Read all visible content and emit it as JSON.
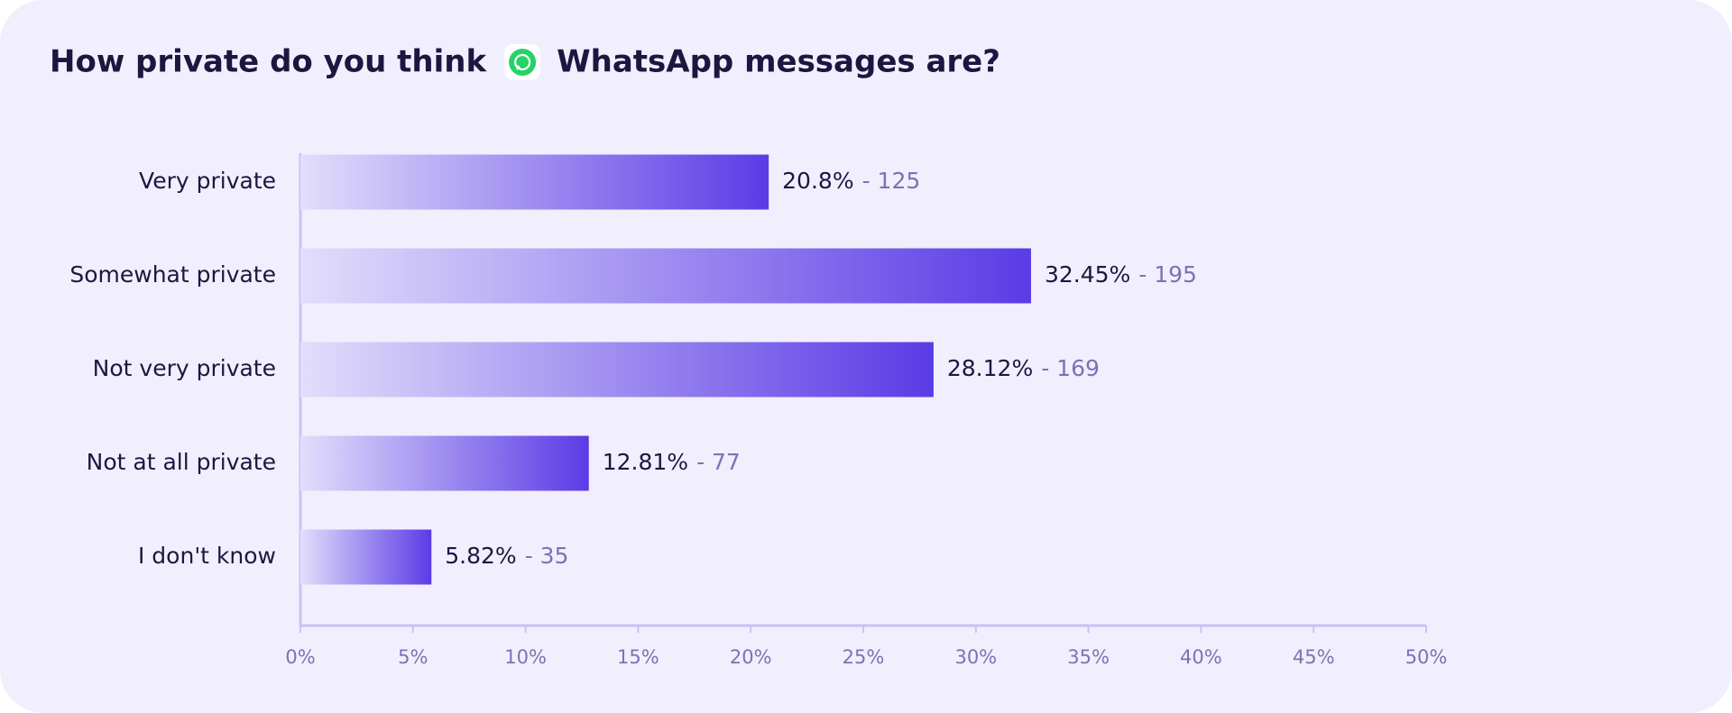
{
  "chart_data": {
    "type": "bar",
    "orientation": "horizontal",
    "title": [
      "How private do you think",
      "WhatsApp messages are?"
    ],
    "categories": [
      "Very private",
      "Somewhat private",
      "Not very private",
      "Not at all private",
      "I don't know"
    ],
    "values": [
      20.8,
      32.45,
      28.12,
      12.81,
      5.82
    ],
    "value_labels": [
      "20.8%",
      "32.45%",
      "28.12%",
      "12.81%",
      "5.82%"
    ],
    "count_labels": [
      "- 125",
      "- 195",
      "- 169",
      "- 77",
      "- 35"
    ],
    "color": [
      "#e2defb",
      "#5b3be6"
    ],
    "xlim": [
      0,
      50
    ],
    "xticks": [
      {
        "value": 0,
        "label": "0%"
      },
      {
        "value": 5,
        "label": "5%"
      },
      {
        "value": 10,
        "label": "10%"
      },
      {
        "value": 15,
        "label": "15%"
      },
      {
        "value": 20,
        "label": "20%"
      },
      {
        "value": 25,
        "label": "25%"
      },
      {
        "value": 30,
        "label": "30%"
      },
      {
        "value": 35,
        "label": "35%"
      },
      {
        "value": 40,
        "label": "40%"
      },
      {
        "value": 45,
        "label": "45%"
      },
      {
        "value": 50,
        "label": "50%"
      }
    ]
  }
}
